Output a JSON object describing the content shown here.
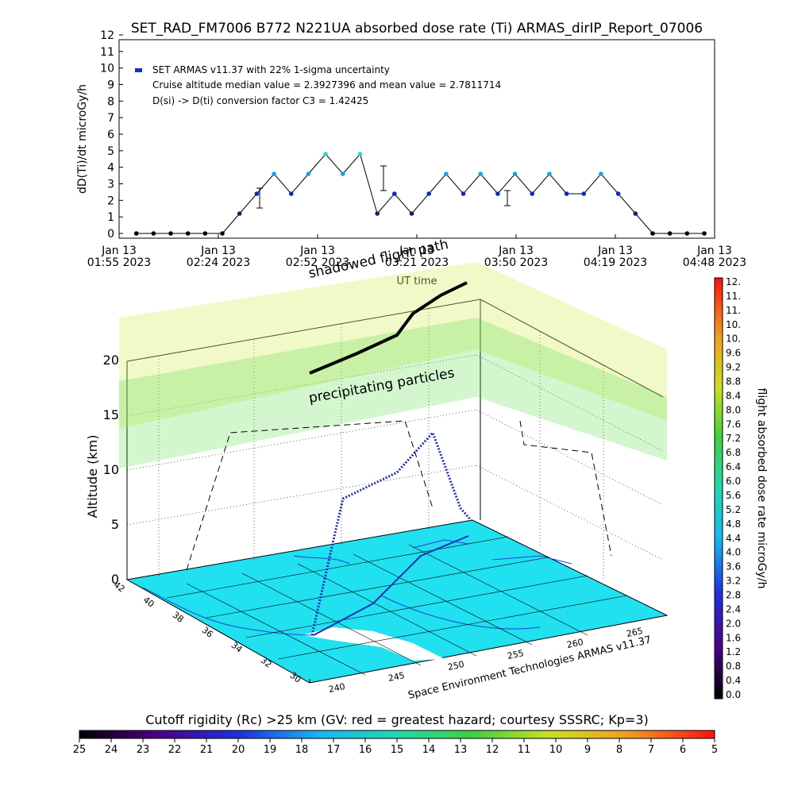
{
  "chart_data": [
    {
      "type": "scatter",
      "title": "SET_RAD_FM7006  B772 N221UA absorbed dose rate (Ti) ARMAS_dirIP_Report_07006",
      "ylabel": "dD(Ti)/dt microGy/h",
      "xlabel": "UT time",
      "ylim": [
        0,
        12
      ],
      "y_ticks": [
        "0",
        "1",
        "2",
        "3",
        "4",
        "5",
        "6",
        "7",
        "8",
        "9",
        "10",
        "11",
        "12"
      ],
      "x_ticks": [
        {
          "line1": "Jan 13",
          "line2": "01:55 2023"
        },
        {
          "line1": "Jan 13",
          "line2": "02:24 2023"
        },
        {
          "line1": "Jan 13",
          "line2": "02:52 2023"
        },
        {
          "line1": "Jan 13",
          "line2": "03:21 2023"
        },
        {
          "line1": "Jan 13",
          "line2": "03:50 2023"
        },
        {
          "line1": "Jan 13",
          "line2": "04:19 2023"
        },
        {
          "line1": "Jan 13",
          "line2": "04:48 2023"
        }
      ],
      "x_minutes_range": [
        0,
        173
      ],
      "legend": "SET ARMAS v11.37 with 22% 1-sigma uncertainty",
      "annotations": [
        "Cruise altitude median value = 2.3927396 and mean value = 2.7811714",
        "D(si) -> D(ti) conversion factor C3 = 1.42425"
      ],
      "series": [
        {
          "x_minutes": [
            5,
            10,
            15,
            20,
            25,
            30,
            35,
            40,
            45,
            50,
            55,
            60,
            65,
            70,
            75,
            80,
            85,
            90,
            95,
            100,
            105,
            110,
            115,
            120,
            125,
            130,
            135,
            140,
            145,
            150,
            155,
            160,
            165,
            170
          ],
          "values": [
            0,
            0,
            0,
            0,
            0,
            0,
            1.2,
            2.4,
            3.6,
            2.4,
            3.6,
            4.8,
            3.6,
            4.8,
            1.2,
            2.4,
            1.2,
            2.4,
            3.6,
            2.4,
            3.6,
            2.4,
            3.6,
            2.4,
            3.6,
            2.4,
            2.4,
            3.6,
            2.4,
            1.2,
            0,
            0,
            0,
            0
          ]
        }
      ]
    },
    {
      "type": "scatter",
      "zlabel": "Altitude (km)",
      "z_ticks": [
        "0",
        "5",
        "10",
        "15",
        "20"
      ],
      "lat_ticks": [
        "42",
        "40",
        "38",
        "36",
        "34",
        "32",
        "30"
      ],
      "lon_ticks": [
        "240",
        "245",
        "250",
        "255",
        "260",
        "265"
      ],
      "annotations": [
        "shadowed flight path",
        "precipitating particles",
        "Space Environment Technologies ARMAS v11.37"
      ]
    }
  ],
  "colorbar_right": {
    "label": "flight absorbed dose rate microGy/h",
    "ticks": [
      "12.",
      "11.",
      "11.",
      "10.",
      "10.",
      "9.6",
      "9.2",
      "8.8",
      "8.4",
      "8.0",
      "7.6",
      "7.2",
      "6.8",
      "6.4",
      "6.0",
      "5.6",
      "5.2",
      "4.8",
      "4.4",
      "4.0",
      "3.6",
      "3.2",
      "2.8",
      "2.4",
      "2.0",
      "1.6",
      "1.2",
      "0.8",
      "0.4",
      "0.0"
    ]
  },
  "colorbar_bottom": {
    "label": "Cutoff rigidity (Rc) >25 km (GV: red = greatest hazard; courtesy SSSRC; Kp=3)",
    "ticks": [
      "25",
      "24",
      "23",
      "22",
      "21",
      "20",
      "19",
      "18",
      "17",
      "16",
      "15",
      "14",
      "13",
      "12",
      "11",
      "10",
      "9",
      "8",
      "7",
      "6",
      "5"
    ]
  }
}
